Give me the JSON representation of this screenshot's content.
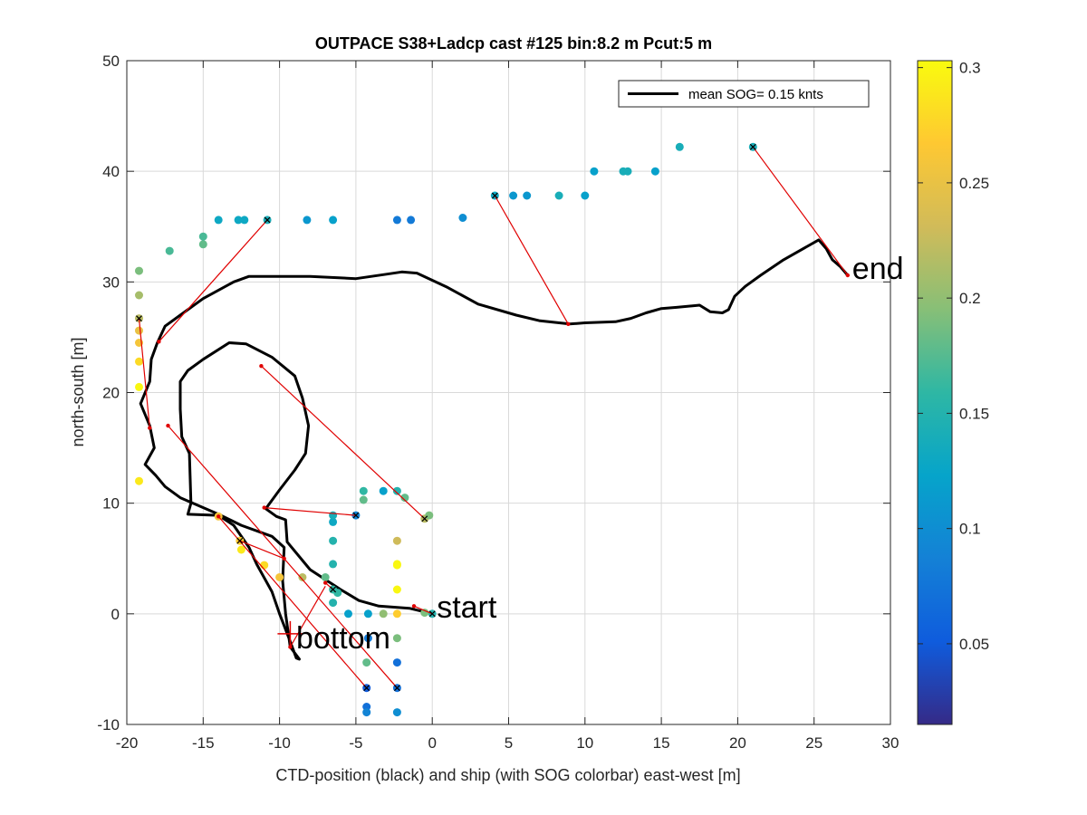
{
  "chart_data": {
    "type": "scatter",
    "title": "OUTPACE S38+Ladcp cast #125 bin:8.2 m  Pcut:5 m",
    "xlabel": "CTD-position (black) and ship (with SOG colorbar) east-west [m]",
    "ylabel": "north-south [m]",
    "xlim": [
      -20,
      30
    ],
    "ylim": [
      -10,
      50
    ],
    "xticks": [
      -20,
      -15,
      -10,
      -5,
      0,
      5,
      10,
      15,
      20,
      25,
      30
    ],
    "yticks": [
      -10,
      0,
      10,
      20,
      30,
      40,
      50
    ],
    "grid": true,
    "legend": {
      "placement": "top-right",
      "entries": [
        "mean SOG=  0.15 knts"
      ]
    },
    "colorbar": {
      "limits": [
        0.015,
        0.303
      ],
      "ticks": [
        0.05,
        0.1,
        0.15,
        0.2,
        0.25,
        0.3
      ],
      "colormap": "parula"
    },
    "annotations": [
      {
        "text": "start",
        "x": 0,
        "y": 0
      },
      {
        "text": "bottom",
        "x": -9.5,
        "y": -1.8
      },
      {
        "text": "end",
        "x": 27.2,
        "y": 30.6
      }
    ],
    "ctd_track": [
      [
        0,
        0
      ],
      [
        -1.5,
        0.5
      ],
      [
        -3.5,
        0.7
      ],
      [
        -4.8,
        1.2
      ],
      [
        -6,
        2.2
      ],
      [
        -8,
        4
      ],
      [
        -9.5,
        6.5
      ],
      [
        -9.6,
        8.5
      ],
      [
        -10.2,
        8.8
      ],
      [
        -10.9,
        9.5
      ],
      [
        -10,
        11.2
      ],
      [
        -9,
        13
      ],
      [
        -8.3,
        14.5
      ],
      [
        -8.1,
        17
      ],
      [
        -8.5,
        19.5
      ],
      [
        -9,
        21.5
      ],
      [
        -10.5,
        23.2
      ],
      [
        -12.2,
        24.4
      ],
      [
        -13.3,
        24.5
      ],
      [
        -15,
        23
      ],
      [
        -16,
        22
      ],
      [
        -16.5,
        21
      ],
      [
        -16.5,
        18.5
      ],
      [
        -16.4,
        16
      ],
      [
        -15.9,
        14.5
      ],
      [
        -15.8,
        10
      ],
      [
        -16,
        9
      ],
      [
        -14,
        8.9
      ],
      [
        -13,
        8
      ],
      [
        -12,
        6
      ],
      [
        -11.5,
        4.5
      ],
      [
        -10.5,
        2
      ],
      [
        -10,
        0
      ],
      [
        -9.3,
        -2.5
      ],
      [
        -8.9,
        -4
      ],
      [
        -8.7,
        -4.1
      ],
      [
        -9.3,
        -3
      ],
      [
        -9.6,
        0
      ],
      [
        -9.8,
        3
      ],
      [
        -9.7,
        6
      ],
      [
        -10.5,
        7
      ],
      [
        -12.5,
        8
      ],
      [
        -14,
        9
      ],
      [
        -16.5,
        10.5
      ],
      [
        -17.5,
        11.5
      ],
      [
        -18.1,
        12.5
      ],
      [
        -18.8,
        13.5
      ],
      [
        -18.2,
        15
      ],
      [
        -18.5,
        17
      ],
      [
        -19.1,
        19
      ],
      [
        -18.5,
        21
      ],
      [
        -18.4,
        23
      ],
      [
        -18,
        24.5
      ],
      [
        -17.5,
        26
      ],
      [
        -16.5,
        27
      ],
      [
        -15,
        28.5
      ],
      [
        -13,
        30
      ],
      [
        -12,
        30.5
      ],
      [
        -10,
        30.5
      ],
      [
        -8,
        30.5
      ],
      [
        -5,
        30.3
      ],
      [
        -3,
        30.7
      ],
      [
        -2,
        30.9
      ],
      [
        -1,
        30.8
      ],
      [
        1,
        29.5
      ],
      [
        3,
        28
      ],
      [
        5.5,
        27
      ],
      [
        7,
        26.5
      ],
      [
        9,
        26.2
      ],
      [
        10,
        26.3
      ],
      [
        12,
        26.4
      ],
      [
        13,
        26.7
      ],
      [
        14,
        27.2
      ],
      [
        15,
        27.6
      ],
      [
        16,
        27.7
      ],
      [
        17.5,
        27.9
      ],
      [
        18.2,
        27.3
      ],
      [
        19,
        27.2
      ],
      [
        19.4,
        27.5
      ],
      [
        19.8,
        28.7
      ],
      [
        20.5,
        29.6
      ],
      [
        21.5,
        30.6
      ],
      [
        23,
        32
      ],
      [
        25.3,
        33.8
      ],
      [
        25.8,
        33
      ],
      [
        26.2,
        32
      ],
      [
        26.7,
        31.4
      ],
      [
        27.2,
        30.6
      ]
    ],
    "ship_positions": [
      [
        0,
        0,
        0.15
      ],
      [
        -0.5,
        0.1,
        0.19
      ],
      [
        -2.3,
        0,
        0.27
      ],
      [
        -3.2,
        0,
        0.2
      ],
      [
        -4.2,
        0,
        0.12
      ],
      [
        -5.5,
        0,
        0.12
      ],
      [
        -6.5,
        1,
        0.15
      ],
      [
        -6.5,
        2.2,
        0.16
      ],
      [
        -6.2,
        1.9,
        0.16
      ],
      [
        -7,
        3.3,
        0.18
      ],
      [
        -8.5,
        3.3,
        0.22
      ],
      [
        -10,
        3.3,
        0.26
      ],
      [
        -11,
        4.4,
        0.28
      ],
      [
        -12.5,
        5.8,
        0.29
      ],
      [
        -12.6,
        6.6,
        0.27
      ],
      [
        -14,
        8.8,
        0.26
      ],
      [
        -6.5,
        4.5,
        0.15
      ],
      [
        -6.5,
        6.6,
        0.15
      ],
      [
        -6.5,
        8.3,
        0.13
      ],
      [
        -6.5,
        8.9,
        0.14
      ],
      [
        -5,
        8.9,
        0.09
      ],
      [
        -4.5,
        10.3,
        0.18
      ],
      [
        -4.5,
        11.1,
        0.16
      ],
      [
        -3.2,
        11.1,
        0.12
      ],
      [
        -2.3,
        11.1,
        0.15
      ],
      [
        -1.8,
        10.5,
        0.18
      ],
      [
        -0.5,
        8.6,
        0.22
      ],
      [
        -0.2,
        8.9,
        0.19
      ],
      [
        -2.3,
        6.6,
        0.23
      ],
      [
        -2.3,
        4.5,
        0.3
      ],
      [
        -2.3,
        4.4,
        0.3
      ],
      [
        -2.3,
        2.2,
        0.3
      ],
      [
        -2.3,
        -2.2,
        0.19
      ],
      [
        -4.2,
        -2.2,
        0.08
      ],
      [
        -4.3,
        -4.4,
        0.18
      ],
      [
        -2.3,
        -4.4,
        0.07
      ],
      [
        -4.3,
        -6.7,
        0.05
      ],
      [
        -2.3,
        -6.7,
        0.07
      ],
      [
        -4.3,
        -8.4,
        0.07
      ],
      [
        -4.3,
        -8.9,
        0.09
      ],
      [
        -2.3,
        -8.9,
        0.1
      ],
      [
        -19.2,
        12,
        0.29
      ],
      [
        -19.2,
        20.5,
        0.3
      ],
      [
        -19.2,
        22.8,
        0.28
      ],
      [
        -19.2,
        24.5,
        0.26
      ],
      [
        -19.2,
        25.6,
        0.25
      ],
      [
        -19.2,
        26.7,
        0.22
      ],
      [
        -19.2,
        28.8,
        0.21
      ],
      [
        -19.2,
        31,
        0.19
      ],
      [
        -17.2,
        32.8,
        0.17
      ],
      [
        -15,
        33.4,
        0.18
      ],
      [
        -15,
        34.1,
        0.17
      ],
      [
        -14,
        35.6,
        0.13
      ],
      [
        -12.7,
        35.6,
        0.13
      ],
      [
        -12.3,
        35.6,
        0.13
      ],
      [
        -10.8,
        35.6,
        0.14
      ],
      [
        -8.2,
        35.6,
        0.11
      ],
      [
        -6.5,
        35.6,
        0.12
      ],
      [
        -2.3,
        35.6,
        0.08
      ],
      [
        -1.4,
        35.6,
        0.08
      ],
      [
        2,
        35.8,
        0.1
      ],
      [
        4.1,
        37.8,
        0.13
      ],
      [
        5.3,
        37.8,
        0.11
      ],
      [
        6.2,
        37.8,
        0.11
      ],
      [
        8.3,
        37.8,
        0.14
      ],
      [
        10,
        37.8,
        0.12
      ],
      [
        10.6,
        40,
        0.12
      ],
      [
        12.5,
        40,
        0.14
      ],
      [
        12.8,
        40,
        0.14
      ],
      [
        14.6,
        40,
        0.12
      ],
      [
        16.2,
        42.2,
        0.14
      ],
      [
        21,
        42.2,
        0.14
      ]
    ],
    "ship_markers": [
      [
        0,
        0
      ],
      [
        -6.5,
        2.2
      ],
      [
        -12.6,
        6.6
      ],
      [
        -5,
        8.9
      ],
      [
        -0.5,
        8.6
      ],
      [
        -4.3,
        -6.7
      ],
      [
        -2.3,
        -6.7
      ],
      [
        -19.2,
        26.7
      ],
      [
        -10.8,
        35.6
      ],
      [
        4.1,
        37.8
      ],
      [
        21,
        42.2
      ]
    ],
    "links": [
      [
        [
          -1.2,
          0.7
        ],
        [
          0,
          0
        ]
      ],
      [
        [
          -7,
          2.8
        ],
        [
          -6.5,
          2.2
        ]
      ],
      [
        [
          -9.7,
          5
        ],
        [
          -12.6,
          6.6
        ]
      ],
      [
        [
          -11,
          9.6
        ],
        [
          -5,
          8.9
        ]
      ],
      [
        [
          -11.2,
          22.4
        ],
        [
          -0.5,
          8.6
        ]
      ],
      [
        [
          -14,
          8.8
        ],
        [
          -4.3,
          -6.7
        ]
      ],
      [
        [
          -17.3,
          17
        ],
        [
          -2.3,
          -6.7
        ]
      ],
      [
        [
          -18.5,
          16.8
        ],
        [
          -19.2,
          26.7
        ]
      ],
      [
        [
          -17.9,
          24.6
        ],
        [
          -10.8,
          35.6
        ]
      ],
      [
        [
          8.9,
          26.2
        ],
        [
          4.1,
          37.8
        ]
      ],
      [
        [
          27.2,
          30.6
        ],
        [
          21,
          42.2
        ]
      ],
      [
        [
          -9.3,
          -3
        ],
        [
          -7,
          2.5
        ]
      ]
    ],
    "bottom_marker": [
      -9.3,
      -1.8
    ]
  }
}
